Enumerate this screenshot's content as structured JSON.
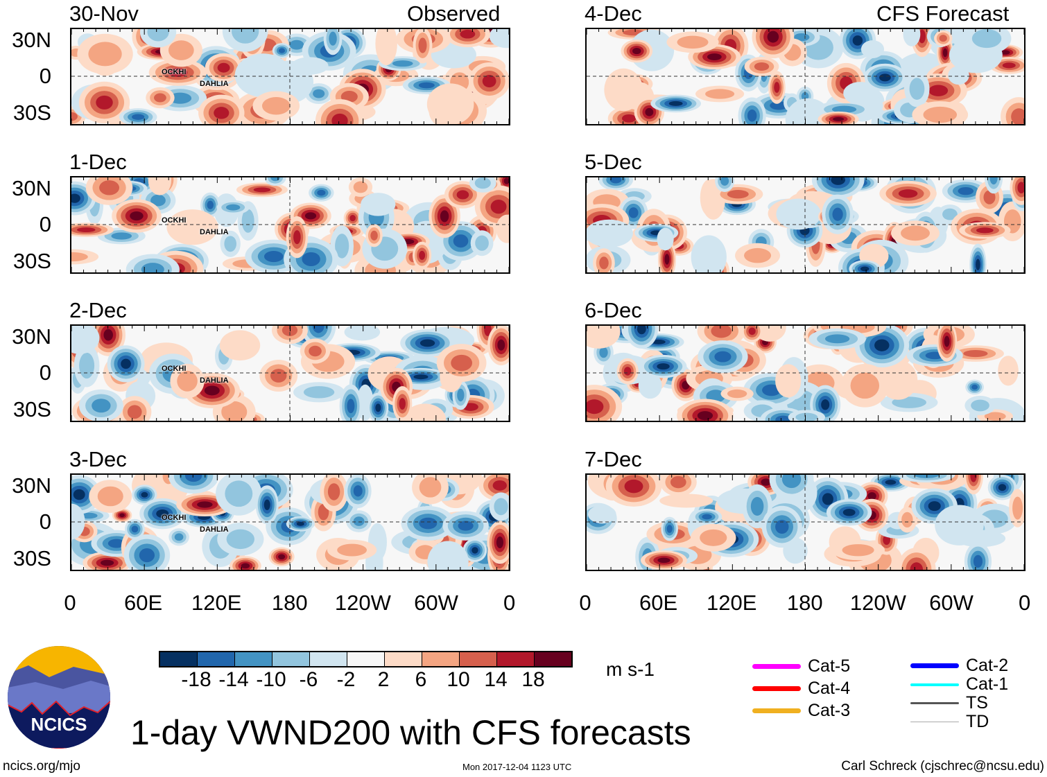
{
  "left_header": "Observed",
  "right_header": "CFS Forecast",
  "panels": [
    {
      "date": "30-Nov",
      "storms": [
        "OCKHI",
        "DAHLIA"
      ]
    },
    {
      "date": "1-Dec",
      "storms": [
        "OCKHI",
        "DAHLIA"
      ]
    },
    {
      "date": "2-Dec",
      "storms": [
        "OCKHI",
        "DAHLIA"
      ]
    },
    {
      "date": "3-Dec",
      "storms": [
        "OCKHI",
        "DAHLIA"
      ]
    },
    {
      "date": "4-Dec",
      "storms": []
    },
    {
      "date": "5-Dec",
      "storms": []
    },
    {
      "date": "6-Dec",
      "storms": []
    },
    {
      "date": "7-Dec",
      "storms": []
    }
  ],
  "lat_labels": [
    "30N",
    "0",
    "30S"
  ],
  "lon_labels": [
    "0",
    "60E",
    "120E",
    "180",
    "120W",
    "60W",
    "0"
  ],
  "colorbar": {
    "colors": [
      "#053061",
      "#2166ac",
      "#4393c3",
      "#92c5de",
      "#d1e5f0",
      "#f7f7f7",
      "#fddbc7",
      "#f4a582",
      "#d6604d",
      "#b2182b",
      "#67001f"
    ],
    "labels": [
      "-18",
      "-14",
      "-10",
      "-6",
      "-2",
      "2",
      "6",
      "10",
      "14",
      "18"
    ],
    "units": "m s-1"
  },
  "storm_legend": [
    {
      "label": "Cat-5",
      "color": "#ff00ff"
    },
    {
      "label": "Cat-4",
      "color": "#ff0000"
    },
    {
      "label": "Cat-3",
      "color": "#f0b020"
    },
    {
      "label": "Cat-2",
      "color": "#0000ff"
    },
    {
      "label": "Cat-1",
      "color": "#00ffff"
    },
    {
      "label": "TS",
      "color": "#555555"
    },
    {
      "label": "TD",
      "color": "#aaaaaa"
    }
  ],
  "logo_text": "NCICS",
  "title": "1-day VWND200 with CFS forecasts",
  "footer": {
    "left": "ncics.org/mjo",
    "center": "Mon 2017-12-04 1123 UTC",
    "right": "Carl Schreck (cjschrec@ncsu.edu)"
  }
}
